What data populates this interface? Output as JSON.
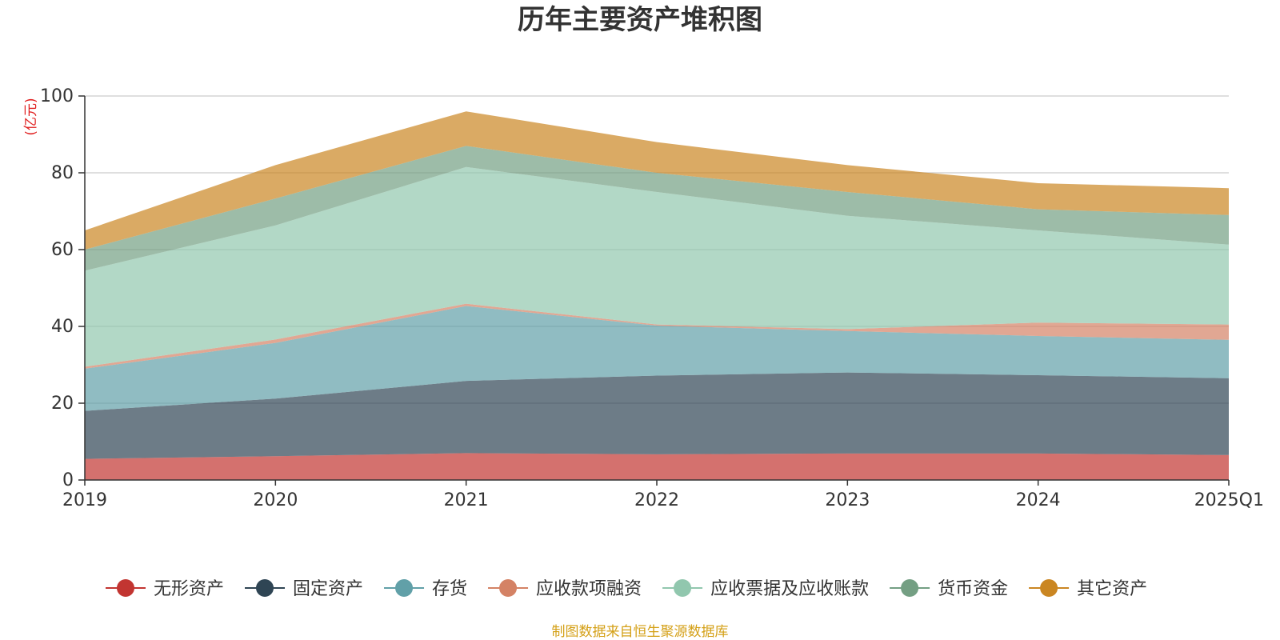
{
  "chart_data": {
    "type": "area",
    "stacked": true,
    "title": "历年主要资产堆积图",
    "unit_label": "(亿元)",
    "source": "制图数据来自恒生聚源数据库",
    "categories": [
      "2019",
      "2020",
      "2021",
      "2022",
      "2023",
      "2024",
      "2025Q1"
    ],
    "ylim": [
      0,
      100
    ],
    "yticks": [
      0,
      20,
      40,
      60,
      80,
      100
    ],
    "grid": true,
    "legend_position": "bottom",
    "series": [
      {
        "name": "无形资产",
        "color": "#c23531",
        "values": [
          5.5,
          6.2,
          7.0,
          6.7,
          6.9,
          6.9,
          6.5
        ]
      },
      {
        "name": "固定资产",
        "color": "#2f4554",
        "values": [
          12.5,
          15.0,
          18.8,
          20.5,
          21.1,
          20.4,
          20.0
        ]
      },
      {
        "name": "存货",
        "color": "#61a0a8",
        "values": [
          11.0,
          14.5,
          19.5,
          13.0,
          10.8,
          10.2,
          10.0
        ]
      },
      {
        "name": "应收款项融资",
        "color": "#d48265",
        "values": [
          0.5,
          0.9,
          0.6,
          0.3,
          0.5,
          3.5,
          4.0
        ]
      },
      {
        "name": "应收票据及应收账款",
        "color": "#91c7ae",
        "values": [
          25.0,
          29.7,
          35.6,
          34.5,
          29.5,
          24.0,
          20.8
        ]
      },
      {
        "name": "货币资金",
        "color": "#749f83",
        "values": [
          5.5,
          7.0,
          5.5,
          5.0,
          6.2,
          5.5,
          7.7
        ]
      },
      {
        "name": "其它资产",
        "color": "#ca8622",
        "values": [
          5.0,
          8.7,
          9.0,
          8.0,
          7.0,
          6.8,
          7.0
        ]
      }
    ]
  }
}
